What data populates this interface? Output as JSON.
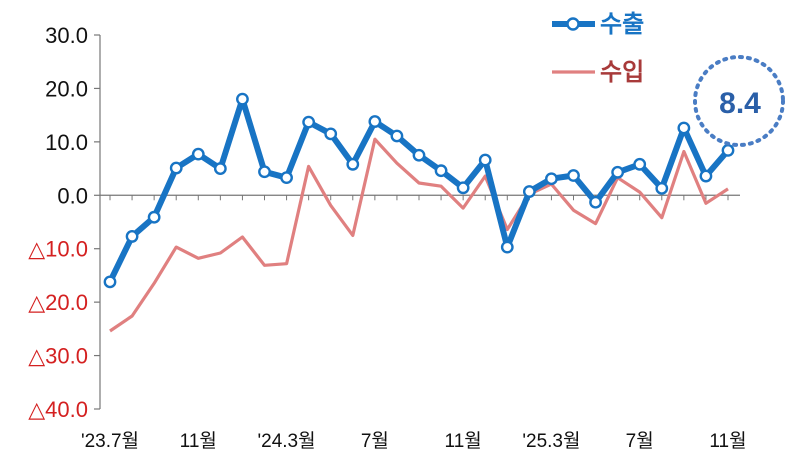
{
  "chart_data": {
    "type": "line",
    "title": "",
    "xlabel": "",
    "ylabel": "",
    "ylim": [
      -40,
      30
    ],
    "yticks": [
      {
        "value": 30,
        "label": "30.0"
      },
      {
        "value": 20,
        "label": "20.0"
      },
      {
        "value": 10,
        "label": "10.0"
      },
      {
        "value": 0,
        "label": "0.0"
      },
      {
        "value": -10,
        "label": "△10.0"
      },
      {
        "value": -20,
        "label": "△20.0"
      },
      {
        "value": -30,
        "label": "△30.0"
      },
      {
        "value": -40,
        "label": "△40.0"
      }
    ],
    "x": [
      "2023-07",
      "2023-08",
      "2023-09",
      "2023-10",
      "2023-11",
      "2023-12",
      "2024-01",
      "2024-02",
      "2024-03",
      "2024-04",
      "2024-05",
      "2024-06",
      "2024-07",
      "2024-08",
      "2024-09",
      "2024-10",
      "2024-11",
      "2024-12",
      "2025-01",
      "2025-02",
      "2025-03",
      "2025-04",
      "2025-05",
      "2025-06",
      "2025-07",
      "2025-08",
      "2025-09",
      "2025-10",
      "2025-11"
    ],
    "xtick_labels": [
      {
        "index": 0,
        "label": "'23.7월"
      },
      {
        "index": 4,
        "label": "11월"
      },
      {
        "index": 8,
        "label": "'24.3월"
      },
      {
        "index": 12,
        "label": "7월"
      },
      {
        "index": 16,
        "label": "11월"
      },
      {
        "index": 20,
        "label": "'25.3월"
      },
      {
        "index": 24,
        "label": "7월"
      },
      {
        "index": 28,
        "label": "11월"
      }
    ],
    "series": [
      {
        "name": "수출",
        "color": "#1874c4",
        "values": [
          -16.2,
          -7.7,
          -4.1,
          5.1,
          7.7,
          5.0,
          18.0,
          4.4,
          3.3,
          13.7,
          11.5,
          5.8,
          13.8,
          11.1,
          7.5,
          4.6,
          1.4,
          6.6,
          -9.7,
          0.7,
          3.1,
          3.7,
          -1.3,
          4.3,
          5.8,
          1.3,
          12.6,
          3.6,
          8.4
        ]
      },
      {
        "name": "수입",
        "color": "#e08080",
        "values": [
          -25.4,
          -22.6,
          -16.5,
          -9.7,
          -11.8,
          -10.8,
          -7.8,
          -13.1,
          -12.8,
          5.4,
          -1.9,
          -7.5,
          10.5,
          6.0,
          2.3,
          1.7,
          -2.4,
          3.6,
          -6.4,
          0.2,
          2.1,
          -2.8,
          -5.3,
          3.3,
          0.6,
          -4.2,
          8.2,
          -1.5,
          1.2
        ]
      }
    ],
    "legend": {
      "placement": "top-right"
    },
    "callout": {
      "series": "수출",
      "value_label": "8.4",
      "color": "#2a5fa8"
    },
    "grid": false
  }
}
